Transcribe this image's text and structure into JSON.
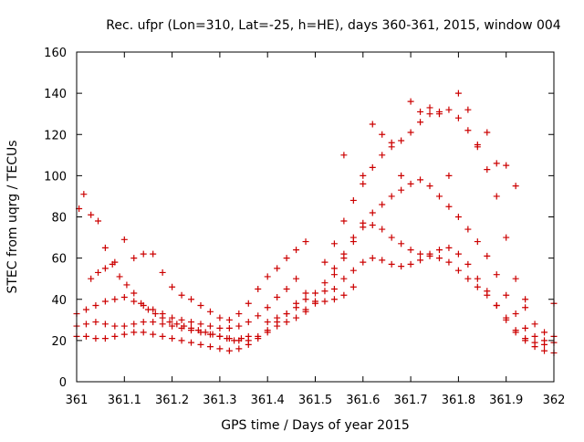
{
  "chart_data": {
    "type": "scatter",
    "title": "Rec. ufpr (Lon=310, Lat=-25, h=HE), days 360-361, 2015, window 004",
    "xlabel": "GPS time / Days of year 2015",
    "ylabel": "STEC from uqrg / TECUs",
    "xlim": [
      361,
      362
    ],
    "ylim": [
      0,
      160
    ],
    "x_ticks": [
      {
        "value": 361.0,
        "label": "361"
      },
      {
        "value": 361.1,
        "label": "361.1"
      },
      {
        "value": 361.2,
        "label": "361.2"
      },
      {
        "value": 361.3,
        "label": "361.3"
      },
      {
        "value": 361.4,
        "label": "361.4"
      },
      {
        "value": 361.5,
        "label": "361.5"
      },
      {
        "value": 361.6,
        "label": "361.6"
      },
      {
        "value": 361.7,
        "label": "361.7"
      },
      {
        "value": 361.8,
        "label": "361.8"
      },
      {
        "value": 361.9,
        "label": "361.9"
      },
      {
        "value": 362.0,
        "label": "362"
      }
    ],
    "y_ticks": [
      {
        "value": 0,
        "label": "0"
      },
      {
        "value": 20,
        "label": "20"
      },
      {
        "value": 40,
        "label": "40"
      },
      {
        "value": 60,
        "label": "60"
      },
      {
        "value": 80,
        "label": "80"
      },
      {
        "value": 100,
        "label": "100"
      },
      {
        "value": 120,
        "label": "120"
      },
      {
        "value": 140,
        "label": "140"
      },
      {
        "value": 160,
        "label": "160"
      }
    ],
    "grid": false,
    "legend": "none",
    "marker": "plus",
    "marker_color": "#cc0000",
    "series": [
      {
        "values": [
          [
            361.005,
            84
          ],
          [
            361.015,
            91
          ],
          [
            361.03,
            81
          ],
          [
            361.045,
            78
          ],
          [
            361.06,
            65
          ],
          [
            361.075,
            57
          ],
          [
            361.09,
            51
          ],
          [
            361.105,
            47
          ],
          [
            361.12,
            43
          ],
          [
            361.135,
            38
          ],
          [
            361.15,
            35
          ],
          [
            361.165,
            33
          ],
          [
            361.18,
            31
          ],
          [
            361.195,
            29
          ],
          [
            361.21,
            28
          ],
          [
            361.225,
            27
          ],
          [
            361.24,
            26
          ],
          [
            361.255,
            25
          ],
          [
            361.27,
            24
          ],
          [
            361.285,
            23
          ],
          [
            361.3,
            22
          ],
          [
            361.315,
            21
          ],
          [
            361.33,
            20
          ],
          [
            361.345,
            21
          ],
          [
            361.36,
            22
          ]
        ]
      },
      {
        "values": [
          [
            361.0,
            33
          ],
          [
            361.02,
            35
          ],
          [
            361.04,
            37
          ],
          [
            361.06,
            39
          ],
          [
            361.08,
            40
          ],
          [
            361.1,
            41
          ],
          [
            361.12,
            39
          ],
          [
            361.14,
            37
          ],
          [
            361.16,
            35
          ],
          [
            361.18,
            33
          ],
          [
            361.2,
            31
          ],
          [
            361.22,
            30
          ],
          [
            361.24,
            29
          ],
          [
            361.26,
            28
          ],
          [
            361.28,
            27
          ],
          [
            361.3,
            26
          ],
          [
            361.32,
            26
          ],
          [
            361.34,
            27
          ],
          [
            361.36,
            29
          ],
          [
            361.38,
            32
          ],
          [
            361.4,
            36
          ],
          [
            361.42,
            41
          ],
          [
            361.44,
            45
          ],
          [
            361.46,
            50
          ]
        ]
      },
      {
        "values": [
          [
            361.0,
            22
          ],
          [
            361.02,
            22
          ],
          [
            361.04,
            21
          ],
          [
            361.06,
            21
          ],
          [
            361.08,
            22
          ],
          [
            361.1,
            23
          ],
          [
            361.12,
            24
          ],
          [
            361.14,
            24
          ],
          [
            361.16,
            23
          ],
          [
            361.18,
            22
          ],
          [
            361.2,
            21
          ],
          [
            361.22,
            20
          ],
          [
            361.24,
            19
          ],
          [
            361.26,
            18
          ],
          [
            361.28,
            17
          ],
          [
            361.3,
            16
          ],
          [
            361.32,
            15
          ],
          [
            361.34,
            16
          ],
          [
            361.36,
            18
          ],
          [
            361.38,
            21
          ],
          [
            361.4,
            24
          ],
          [
            361.42,
            27
          ],
          [
            361.44,
            29
          ],
          [
            361.46,
            31
          ],
          [
            361.48,
            34
          ],
          [
            361.5,
            38
          ],
          [
            361.52,
            39
          ],
          [
            361.54,
            40
          ],
          [
            361.56,
            42
          ],
          [
            361.58,
            46
          ]
        ]
      },
      {
        "values": [
          [
            361.0,
            27
          ],
          [
            361.02,
            28
          ],
          [
            361.04,
            29
          ],
          [
            361.06,
            28
          ],
          [
            361.08,
            27
          ],
          [
            361.1,
            27
          ],
          [
            361.12,
            28
          ],
          [
            361.14,
            29
          ],
          [
            361.16,
            29
          ],
          [
            361.18,
            28
          ],
          [
            361.2,
            27
          ],
          [
            361.22,
            26
          ],
          [
            361.24,
            25
          ],
          [
            361.26,
            24
          ],
          [
            361.28,
            23
          ],
          [
            361.3,
            22
          ],
          [
            361.32,
            21
          ],
          [
            361.34,
            20
          ],
          [
            361.36,
            20
          ],
          [
            361.38,
            22
          ],
          [
            361.4,
            25
          ],
          [
            361.42,
            29
          ],
          [
            361.44,
            33
          ],
          [
            361.46,
            38
          ],
          [
            361.48,
            43
          ]
        ]
      },
      {
        "values": [
          [
            361.03,
            50
          ],
          [
            361.045,
            53
          ],
          [
            361.06,
            55
          ],
          [
            361.08,
            58
          ],
          [
            361.1,
            69
          ],
          [
            361.12,
            60
          ],
          [
            361.14,
            62
          ],
          [
            361.16,
            62
          ],
          [
            361.18,
            53
          ],
          [
            361.2,
            46
          ],
          [
            361.22,
            42
          ],
          [
            361.24,
            40
          ],
          [
            361.26,
            37
          ],
          [
            361.28,
            34
          ],
          [
            361.3,
            31
          ],
          [
            361.32,
            30
          ],
          [
            361.34,
            33
          ],
          [
            361.36,
            38
          ],
          [
            361.38,
            45
          ],
          [
            361.4,
            51
          ],
          [
            361.42,
            55
          ],
          [
            361.44,
            60
          ],
          [
            361.46,
            64
          ],
          [
            361.48,
            68
          ]
        ]
      },
      {
        "values": [
          [
            361.4,
            29
          ],
          [
            361.42,
            31
          ],
          [
            361.44,
            33
          ],
          [
            361.46,
            36
          ],
          [
            361.48,
            40
          ],
          [
            361.5,
            43
          ],
          [
            361.52,
            48
          ],
          [
            361.54,
            55
          ],
          [
            361.56,
            62
          ],
          [
            361.58,
            70
          ],
          [
            361.6,
            75
          ],
          [
            361.62,
            76
          ],
          [
            361.64,
            74
          ],
          [
            361.66,
            70
          ],
          [
            361.68,
            67
          ],
          [
            361.7,
            64
          ],
          [
            361.72,
            62
          ],
          [
            361.74,
            61
          ],
          [
            361.76,
            60
          ],
          [
            361.78,
            58
          ],
          [
            361.8,
            54
          ],
          [
            361.82,
            50
          ],
          [
            361.84,
            46
          ],
          [
            361.86,
            42
          ],
          [
            361.88,
            37
          ],
          [
            361.9,
            31
          ],
          [
            361.92,
            25
          ],
          [
            361.94,
            20
          ],
          [
            361.96,
            17
          ],
          [
            361.98,
            15
          ],
          [
            362.0,
            14
          ]
        ]
      },
      {
        "values": [
          [
            361.48,
            35
          ],
          [
            361.5,
            39
          ],
          [
            361.52,
            44
          ],
          [
            361.54,
            52
          ],
          [
            361.56,
            60
          ],
          [
            361.58,
            68
          ],
          [
            361.6,
            77
          ],
          [
            361.62,
            82
          ],
          [
            361.64,
            86
          ],
          [
            361.66,
            90
          ],
          [
            361.68,
            93
          ],
          [
            361.7,
            96
          ],
          [
            361.72,
            98
          ],
          [
            361.74,
            95
          ],
          [
            361.76,
            90
          ],
          [
            361.78,
            85
          ],
          [
            361.8,
            80
          ],
          [
            361.82,
            74
          ],
          [
            361.84,
            68
          ],
          [
            361.86,
            61
          ],
          [
            361.88,
            52
          ],
          [
            361.9,
            42
          ],
          [
            361.92,
            33
          ],
          [
            361.94,
            26
          ],
          [
            361.96,
            22
          ],
          [
            361.98,
            20
          ],
          [
            362.0,
            19
          ]
        ]
      },
      {
        "values": [
          [
            361.52,
            58
          ],
          [
            361.54,
            67
          ],
          [
            361.56,
            78
          ],
          [
            361.58,
            88
          ],
          [
            361.6,
            96
          ],
          [
            361.62,
            104
          ],
          [
            361.64,
            110
          ],
          [
            361.66,
            114
          ],
          [
            361.68,
            117
          ],
          [
            361.7,
            121
          ],
          [
            361.72,
            126
          ],
          [
            361.74,
            130
          ],
          [
            361.76,
            131
          ],
          [
            361.78,
            132
          ],
          [
            361.8,
            128
          ],
          [
            361.82,
            122
          ],
          [
            361.84,
            114
          ],
          [
            361.86,
            103
          ],
          [
            361.88,
            90
          ],
          [
            361.9,
            70
          ],
          [
            361.92,
            50
          ],
          [
            361.94,
            36
          ],
          [
            361.96,
            28
          ],
          [
            361.98,
            24
          ],
          [
            362.0,
            22
          ]
        ]
      },
      {
        "values": [
          [
            361.56,
            110
          ],
          [
            361.6,
            100
          ],
          [
            361.62,
            125
          ],
          [
            361.64,
            120
          ],
          [
            361.66,
            116
          ],
          [
            361.68,
            100
          ],
          [
            361.7,
            136
          ],
          [
            361.72,
            131
          ],
          [
            361.74,
            133
          ],
          [
            361.76,
            130
          ],
          [
            361.78,
            100
          ],
          [
            361.8,
            140
          ],
          [
            361.82,
            132
          ],
          [
            361.84,
            115
          ],
          [
            361.86,
            121
          ],
          [
            361.88,
            106
          ],
          [
            361.9,
            105
          ],
          [
            361.92,
            95
          ],
          [
            361.94,
            40
          ]
        ]
      },
      {
        "values": [
          [
            361.54,
            45
          ],
          [
            361.56,
            50
          ],
          [
            361.58,
            54
          ],
          [
            361.6,
            58
          ],
          [
            361.62,
            60
          ],
          [
            361.64,
            59
          ],
          [
            361.66,
            57
          ],
          [
            361.68,
            56
          ],
          [
            361.7,
            57
          ],
          [
            361.72,
            59
          ],
          [
            361.74,
            62
          ],
          [
            361.76,
            64
          ],
          [
            361.78,
            65
          ],
          [
            361.8,
            62
          ],
          [
            361.82,
            57
          ],
          [
            361.84,
            50
          ],
          [
            361.86,
            44
          ],
          [
            361.88,
            37
          ],
          [
            361.9,
            30
          ],
          [
            361.92,
            24
          ],
          [
            361.94,
            21
          ],
          [
            361.96,
            19
          ],
          [
            361.98,
            18
          ],
          [
            362.0,
            38
          ]
        ]
      }
    ]
  }
}
